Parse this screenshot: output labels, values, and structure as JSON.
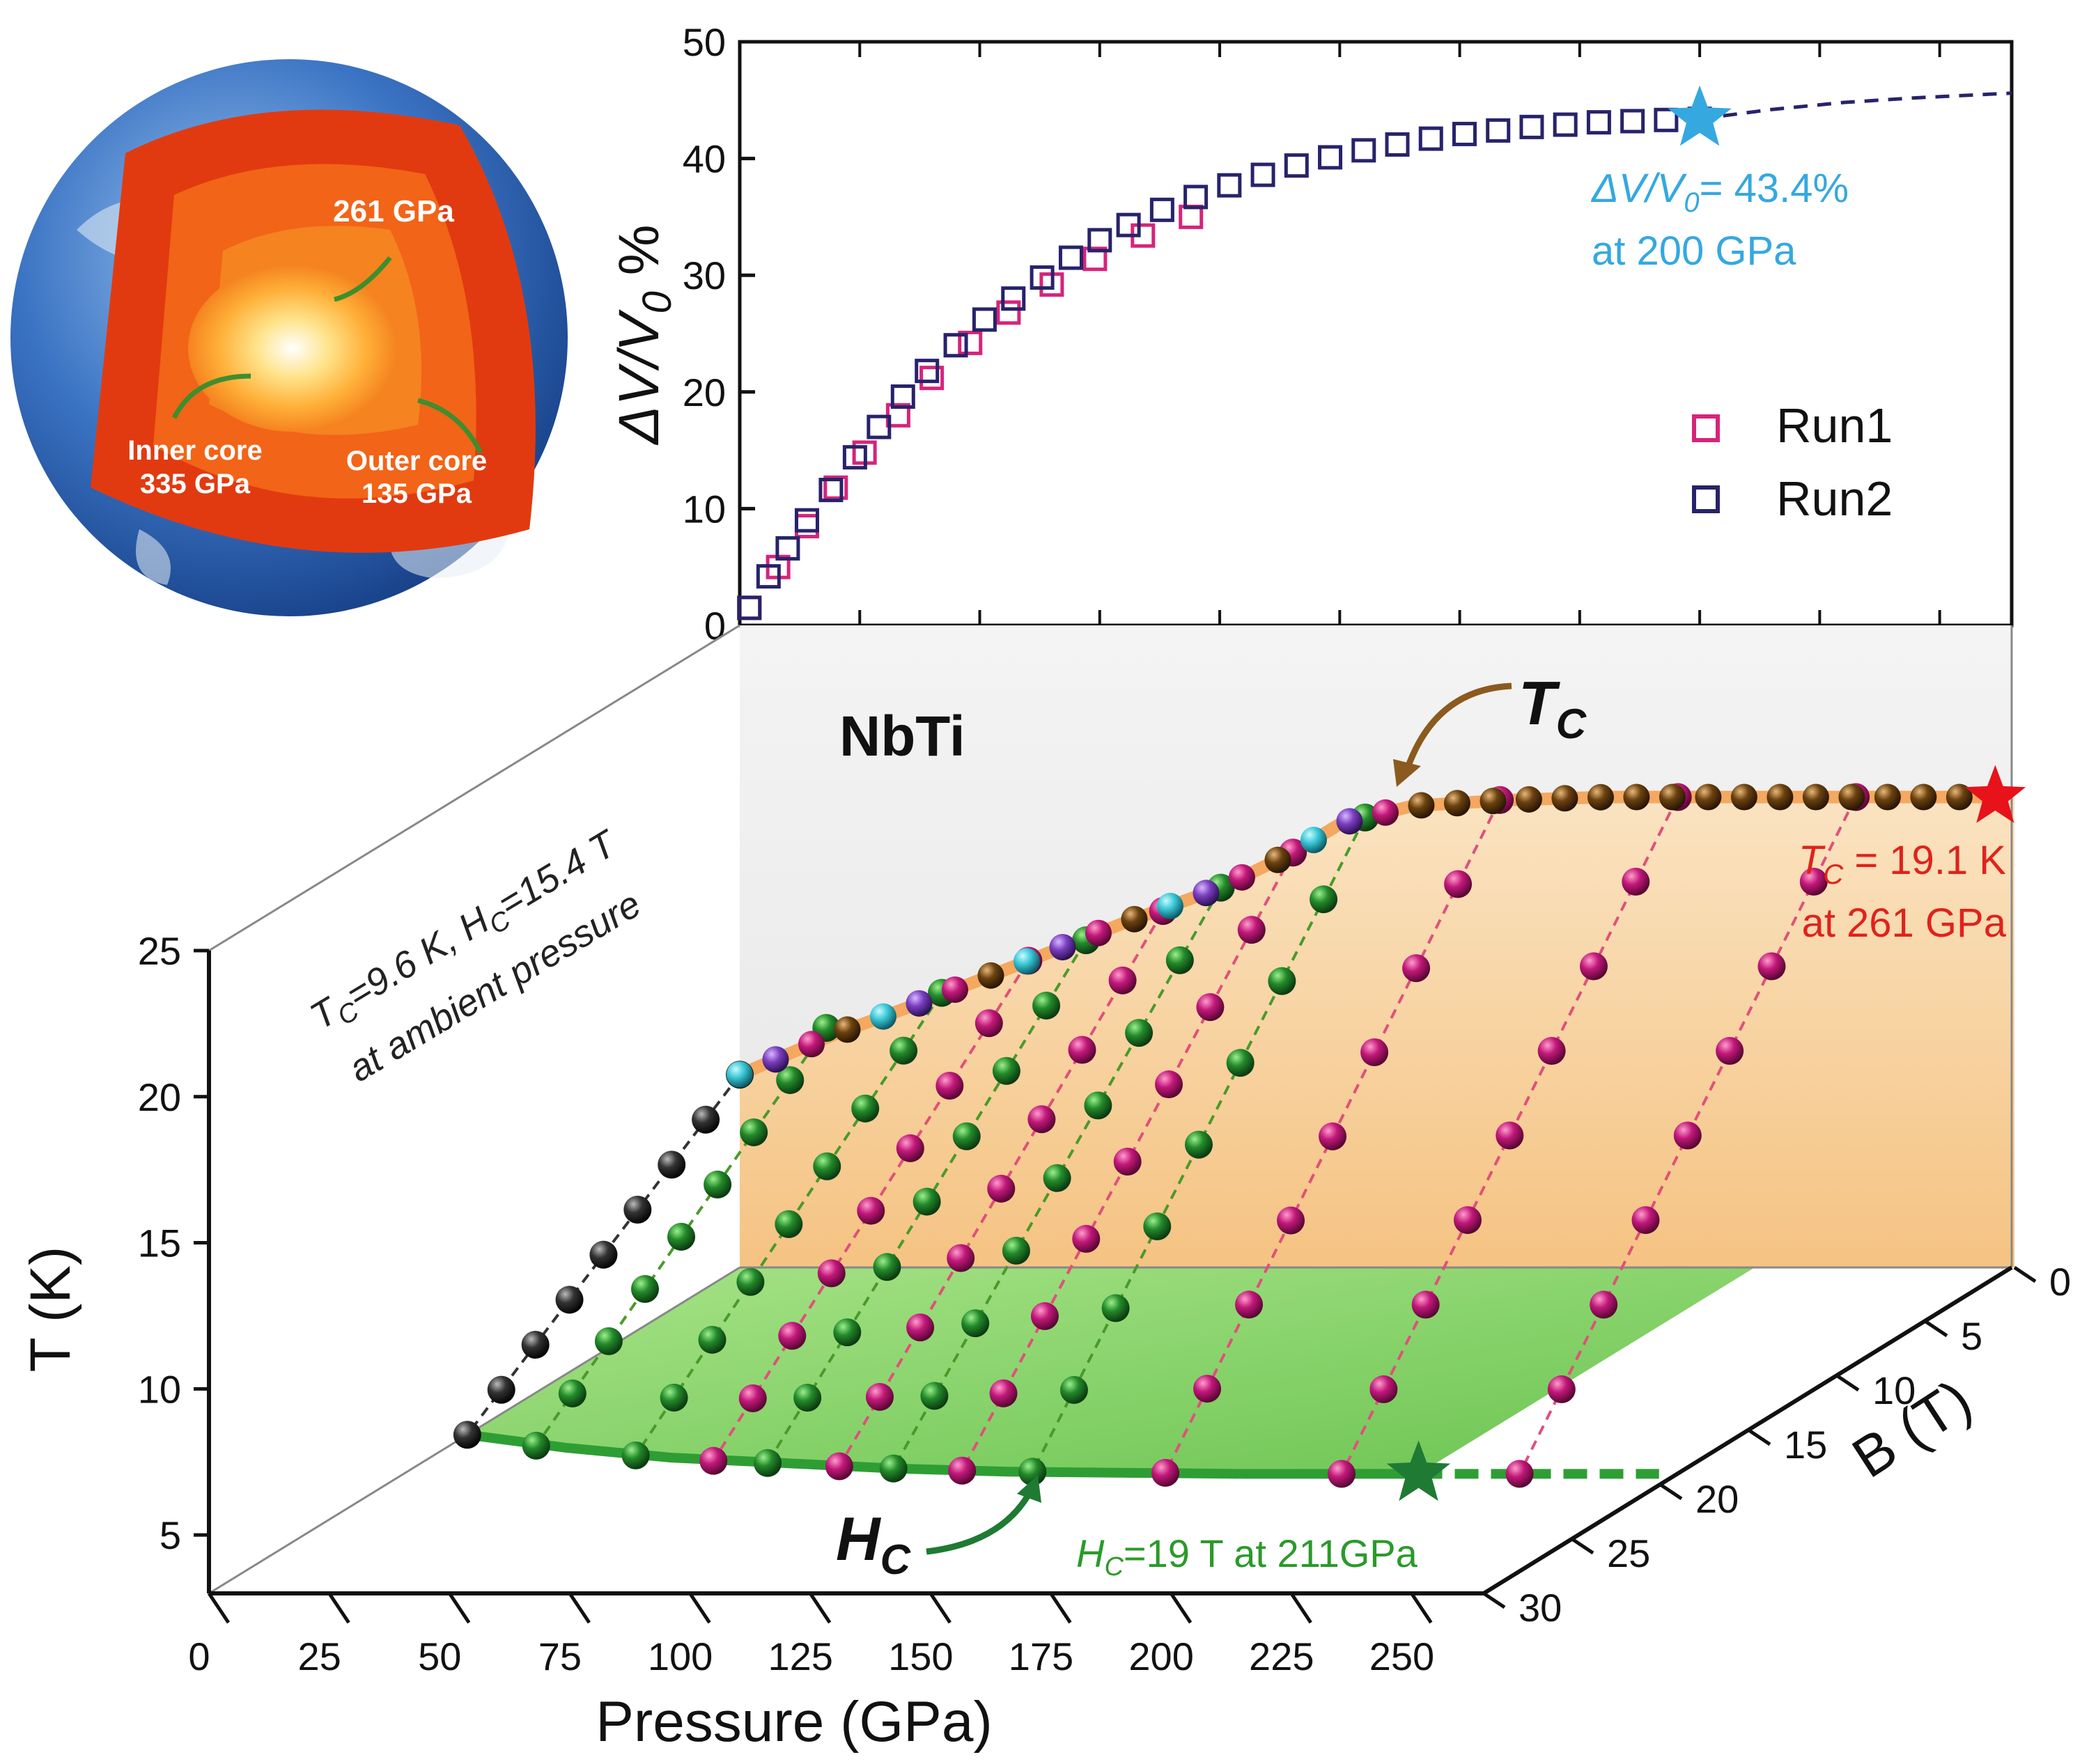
{
  "figure": {
    "earth": {
      "labels": {
        "p261": "261 GPa",
        "inner_name": "Inner core",
        "inner_p": "335 GPa",
        "outer_name": "Outer core",
        "outer_p": "135 GPa"
      },
      "colors": {
        "ocean": "#3b74c4",
        "crust": "#e23a10",
        "mantle": "#f5831f",
        "core": "#ffe38a"
      }
    },
    "material": "NbTi",
    "tc_label": "T",
    "tc_sub": "C",
    "hc_label": "H",
    "hc_sub": "C",
    "ambient_line1": "T",
    "ambient_line1_sub": "C",
    "ambient_line1_rest": "=9.6 K, H",
    "ambient_line1_sub2": "C",
    "ambient_line1_rest2": "=15.4 T",
    "ambient_line2": "at ambient pressure",
    "tc_note_a": "T",
    "tc_note_a_sub": "C",
    "tc_note_b": " = 19.1 K",
    "tc_note_line2": "at 261 GPa",
    "hc_note_a": "H",
    "hc_note_a_sub": "C",
    "hc_note_b": "=19 T at 211GPa",
    "colors": {
      "run1": "#d6247a",
      "run2": "#27236b",
      "star_blue": "#35a8e0",
      "star_red": "#e8121a",
      "star_green": "#1f7a34",
      "tc_plane": "#f7c98a",
      "hc_plane": "#7ccf5a",
      "magenta_sphere": "#c2187a",
      "green_sphere": "#238a2a",
      "brown_sphere": "#6b4210",
      "cyan_sphere": "#3cc8d8",
      "purple_sphere": "#7a3ec0",
      "black_sphere": "#222222",
      "tc_label_color": "#8a5a1e",
      "tc_note_color": "#e0221c",
      "hc_note_color": "#2a9a2a",
      "dv_note_color": "#35a8e0"
    }
  },
  "chart_data": [
    {
      "type": "scatter",
      "title": "",
      "xlabel": "",
      "ylabel": "ΔV/V0 %",
      "ylabel_main": "ΔV/V",
      "ylabel_sub": "0",
      "ylabel_pct": " %",
      "xlim": [
        0,
        265
      ],
      "ylim": [
        0,
        50
      ],
      "yticks": [
        "0",
        "10",
        "20",
        "30",
        "40",
        "50"
      ],
      "series": [
        {
          "name": "Run1",
          "x": [
            2,
            8,
            14,
            20,
            26,
            33,
            40,
            48,
            56,
            65,
            74,
            84,
            94
          ],
          "y": [
            1.5,
            5.0,
            8.5,
            11.8,
            14.8,
            18.0,
            21.2,
            24.2,
            26.8,
            29.2,
            31.4,
            33.4,
            35.0
          ]
        },
        {
          "name": "Run2",
          "x": [
            2,
            6,
            10,
            14,
            19,
            24,
            29,
            34,
            39,
            45,
            51,
            57,
            63,
            69,
            75,
            81,
            88,
            95,
            102,
            109,
            116,
            123,
            130,
            137,
            144,
            151,
            158,
            165,
            172,
            179,
            186,
            193,
            200
          ],
          "y": [
            1.5,
            4.2,
            6.6,
            9.0,
            11.6,
            14.4,
            17.0,
            19.6,
            21.8,
            24.0,
            26.2,
            28.0,
            29.8,
            31.5,
            33.0,
            34.3,
            35.6,
            36.7,
            37.7,
            38.6,
            39.4,
            40.1,
            40.7,
            41.2,
            41.7,
            42.1,
            42.4,
            42.7,
            42.9,
            43.1,
            43.2,
            43.3,
            43.4
          ]
        }
      ],
      "fit_dashed": {
        "x": [
          200,
          215,
          230,
          245,
          260,
          265
        ],
        "y": [
          43.4,
          44.2,
          44.8,
          45.2,
          45.5,
          45.6
        ]
      },
      "legend": [
        "Run1",
        "Run2"
      ],
      "legend_position": "right",
      "annotation_a": "ΔV/V",
      "annotation_a_sub": "0",
      "annotation_b": "= 43.4%",
      "annotation_line2": "at 200 GPa",
      "star_point": {
        "x": 200,
        "y": 43.4
      }
    },
    {
      "type": "scatter",
      "title": "NbTi",
      "xlabel": "Pressure (GPa)",
      "ylabel": "T (K)",
      "zlabel": "B (T)",
      "xticks": [
        "0",
        "25",
        "50",
        "75",
        "100",
        "125",
        "150",
        "175",
        "200",
        "225",
        "250"
      ],
      "yticks": [
        "5",
        "10",
        "15",
        "20",
        "25"
      ],
      "zticks": [
        "0",
        "5",
        "10",
        "15",
        "20",
        "25",
        "30"
      ],
      "xlim": [
        0,
        265
      ],
      "ylim": [
        3,
        25
      ],
      "zlim": [
        0,
        30
      ],
      "tc_curve": {
        "x": [
          0,
          20,
          40,
          60,
          80,
          100,
          115,
          125,
          140,
          160,
          180,
          200,
          220,
          240,
          261
        ],
        "y": [
          9.6,
          11.0,
          12.2,
          13.5,
          14.8,
          16.0,
          17.2,
          18.2,
          18.8,
          19.0,
          19.1,
          19.1,
          19.1,
          19.1,
          19.1
        ]
      },
      "hc_curve": {
        "x": [
          0,
          25,
          50,
          75,
          100,
          125,
          150,
          175,
          200,
          211
        ],
        "y": [
          15.4,
          16.6,
          17.5,
          18.0,
          18.5,
          18.8,
          18.9,
          19.0,
          19.0,
          19.0
        ]
      },
      "hc_dashed": {
        "x": [
          211,
          261
        ],
        "y": [
          19.0,
          19.0
        ]
      },
      "hc_star": {
        "x": 211,
        "b": 19
      },
      "tc_star": {
        "x": 261,
        "t": 19.1
      },
      "isobars": [
        {
          "p": 0,
          "color": "black",
          "t0": 9.6,
          "hc": 15.4
        },
        {
          "p": 18,
          "color": "green",
          "t0": 11.2,
          "hc": 16.4
        },
        {
          "p": 42,
          "color": "green",
          "t0": 12.4,
          "hc": 17.3
        },
        {
          "p": 60,
          "color": "magenta",
          "t0": 13.5,
          "hc": 17.8
        },
        {
          "p": 72,
          "color": "green",
          "t0": 14.2,
          "hc": 18.0
        },
        {
          "p": 88,
          "color": "magenta",
          "t0": 15.2,
          "hc": 18.3
        },
        {
          "p": 100,
          "color": "green",
          "t0": 16.0,
          "hc": 18.5
        },
        {
          "p": 115,
          "color": "magenta",
          "t0": 17.2,
          "hc": 18.7
        },
        {
          "p": 130,
          "color": "green",
          "t0": 18.4,
          "hc": 18.8
        },
        {
          "p": 158,
          "color": "magenta",
          "t0": 19.0,
          "hc": 18.9
        },
        {
          "p": 195,
          "color": "magenta",
          "t0": 19.1,
          "hc": 19.0
        },
        {
          "p": 232,
          "color": "magenta",
          "t0": 19.1,
          "hc": 19.0
        }
      ]
    }
  ]
}
